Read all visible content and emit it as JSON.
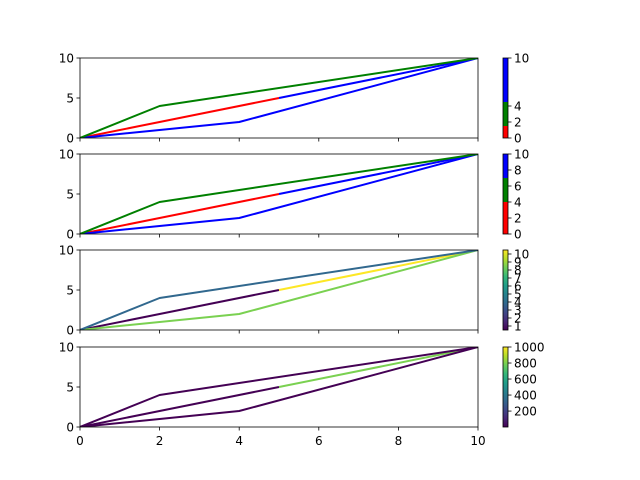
{
  "chart_data": [
    {
      "type": "line",
      "xlim": [
        0,
        10
      ],
      "ylim": [
        0,
        10
      ],
      "yticks": [
        "0",
        "5",
        "10"
      ],
      "show_xticklabels": false,
      "grid": false,
      "series": [
        {
          "x": [
            0,
            2,
            5
          ],
          "y": [
            0,
            2,
            5
          ],
          "color": "#ff0000",
          "colorvalues": [
            1,
            1
          ]
        },
        {
          "x": [
            5,
            10
          ],
          "y": [
            5,
            10
          ],
          "color": "#0000ff",
          "colorvalues": [
            6
          ]
        },
        {
          "x": [
            0,
            2,
            4,
            10
          ],
          "y": [
            0,
            1,
            2,
            10
          ],
          "color": "#0000ff",
          "colorvalues": [
            8,
            8,
            8
          ]
        },
        {
          "x": [
            0,
            2,
            10
          ],
          "y": [
            0,
            4,
            10
          ],
          "color": "#008000",
          "colorvalues": [
            3,
            3
          ]
        }
      ],
      "colorbar": {
        "range": [
          0,
          10
        ],
        "ticks": [
          "0",
          "2",
          "4",
          "10"
        ],
        "segments": [
          {
            "from": 0,
            "to": 1.5,
            "color": "#ff0000"
          },
          {
            "from": 1.5,
            "to": 4.5,
            "color": "#008000"
          },
          {
            "from": 4.5,
            "to": 10,
            "color": "#0000ff"
          }
        ]
      }
    },
    {
      "type": "line",
      "xlim": [
        0,
        10
      ],
      "ylim": [
        0,
        10
      ],
      "yticks": [
        "0",
        "5",
        "10"
      ],
      "show_xticklabels": false,
      "grid": false,
      "series": [
        {
          "x": [
            0,
            2,
            5
          ],
          "y": [
            0,
            2,
            5
          ],
          "color": "#ff0000",
          "colorvalues": [
            1,
            1
          ]
        },
        {
          "x": [
            5,
            10
          ],
          "y": [
            5,
            10
          ],
          "color": "#0000ff",
          "colorvalues": [
            6
          ]
        },
        {
          "x": [
            0,
            2,
            4,
            10
          ],
          "y": [
            0,
            1,
            2,
            10
          ],
          "color": "#0000ff",
          "colorvalues": [
            8,
            8,
            8
          ]
        },
        {
          "x": [
            0,
            2,
            10
          ],
          "y": [
            0,
            4,
            10
          ],
          "color": "#008000",
          "colorvalues": [
            3,
            3
          ]
        }
      ],
      "colorbar": {
        "range": [
          0,
          10
        ],
        "ticks": [
          "0",
          "2",
          "4",
          "6",
          "8",
          "10"
        ],
        "segments": [
          {
            "from": 0,
            "to": 4,
            "color": "#ff0000"
          },
          {
            "from": 4,
            "to": 7,
            "color": "#008000"
          },
          {
            "from": 7,
            "to": 10,
            "color": "#0000ff"
          }
        ]
      }
    },
    {
      "type": "line",
      "xlim": [
        0,
        10
      ],
      "ylim": [
        0,
        10
      ],
      "yticks": [
        "0",
        "5",
        "10"
      ],
      "show_xticklabels": false,
      "grid": false,
      "series": [
        {
          "x": [
            0,
            2,
            5
          ],
          "y": [
            0,
            2,
            5
          ],
          "color": "#440154",
          "colorvalues": [
            1,
            1
          ]
        },
        {
          "x": [
            5,
            10
          ],
          "y": [
            5,
            10
          ],
          "color": "#fde725",
          "colorvalues": [
            10
          ]
        },
        {
          "x": [
            0,
            2,
            4,
            10
          ],
          "y": [
            0,
            1,
            2,
            10
          ],
          "color": "#7ad151",
          "colorvalues": [
            8,
            8,
            8
          ]
        },
        {
          "x": [
            0,
            2,
            10
          ],
          "y": [
            0,
            4,
            10
          ],
          "color": "#31688e",
          "colorvalues": [
            4,
            4
          ]
        }
      ],
      "colorbar": {
        "range": [
          0.5,
          10.5
        ],
        "ticks": [
          "1",
          "2",
          "3",
          "4",
          "5",
          "6",
          "7",
          "8",
          "9",
          "10"
        ],
        "gradient": [
          "#440154",
          "#482878",
          "#3e4989",
          "#31688e",
          "#26828e",
          "#1f9e89",
          "#35b779",
          "#6ece58",
          "#b5de2b",
          "#fde725"
        ]
      }
    },
    {
      "type": "line",
      "xlim": [
        0,
        10
      ],
      "ylim": [
        0,
        10
      ],
      "yticks": [
        "0",
        "5",
        "10"
      ],
      "xticks": [
        "0",
        "2",
        "4",
        "6",
        "8",
        "10"
      ],
      "show_xticklabels": true,
      "grid": false,
      "series": [
        {
          "x": [
            0,
            2,
            5
          ],
          "y": [
            0,
            2,
            5
          ],
          "color": "#440154",
          "colorvalues": [
            1,
            1
          ]
        },
        {
          "x": [
            5,
            10
          ],
          "y": [
            5,
            10
          ],
          "color": "#7ad151",
          "colorvalues": [
            800
          ]
        },
        {
          "x": [
            0,
            2,
            4,
            10
          ],
          "y": [
            0,
            1,
            2,
            10
          ],
          "color": "#440154",
          "colorvalues": [
            8,
            8,
            8
          ]
        },
        {
          "x": [
            0,
            2,
            10
          ],
          "y": [
            0,
            4,
            10
          ],
          "color": "#440154",
          "colorvalues": [
            3,
            3
          ]
        }
      ],
      "colorbar": {
        "range": [
          1,
          1000
        ],
        "ticks": [
          "200",
          "400",
          "600",
          "800",
          "1000"
        ],
        "gradient": [
          "#440154",
          "#482878",
          "#3e4989",
          "#31688e",
          "#26828e",
          "#1f9e89",
          "#35b779",
          "#6ece58",
          "#b5de2b",
          "#fde725"
        ]
      }
    }
  ]
}
